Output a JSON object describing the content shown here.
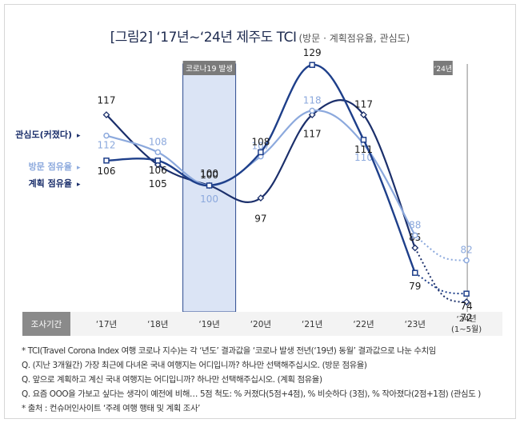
{
  "title": "[그림2] ‘17년~‘24년 제주도 TCI",
  "subtitle": "(방문 · 계획점유율, 관심도)",
  "annotations": {
    "covid_tag": "코로나19 발생",
    "y24_tag": "‘24년"
  },
  "table_header": "조사기간",
  "colors": {
    "interest": "#1b2f6b",
    "visit": "#8ca9dd",
    "plan": "#1e3f8a",
    "header_bg": "#8a8a8a",
    "covid_band": "#dbe4f5"
  },
  "chart_data": {
    "type": "line",
    "categories": [
      "‘17년",
      "‘18년",
      "‘19년",
      "‘20년",
      "‘21년",
      "‘22년",
      "‘23년",
      "‘24년\n(1~5월)"
    ],
    "series": [
      {
        "name": "관심도(커졌다)",
        "values": [
          117,
          105,
          100,
          97,
          117,
          117,
          85,
          72
        ],
        "labels": [
          "117",
          "105",
          "100",
          "97",
          "117",
          "117",
          "85",
          "72"
        ]
      },
      {
        "name": "방문 점유율",
        "values": [
          112,
          108,
          100,
          107,
          118,
          110,
          88,
          82
        ],
        "labels": [
          "112",
          "108",
          "100",
          "107",
          "118",
          "110",
          "88",
          "82"
        ]
      },
      {
        "name": "계획 점유율",
        "values": [
          106,
          106,
          100,
          108,
          129,
          111,
          79,
          74
        ],
        "labels": [
          "106",
          "106",
          "100",
          "108",
          "129",
          "111",
          "79",
          "74"
        ]
      }
    ],
    "dotted_last_segment": true
  },
  "footnotes": [
    "* TCI(Travel Corona Index 여행 코로나 지수)는 각 ‘년도’ 결과값을 ‘코로나 발생 전년(‘19년) 동월’ 결과값으로 나눈 수치임",
    "Q. (지난 3개월간) 가장 최근에 다녀온 국내 여행지는 어디입니까? 하나만 선택해주십시오. (방문 점유율)",
    "Q. 앞으로 계획하고 계신 국내 여행지는 어디입니까? 하나만 선택해주십시오. (계획 점유율)",
    "Q. 요즘 OOO을 가보고 싶다는 생각이 예전에 비해… 5점 척도: % 커졌다(5점+4점), % 비슷하다 (3점), % 작아졌다(2점+1점) (관심도 )",
    "* 출처 : 컨슈머인사이트 ‘주례 여행 행태 및 계획 조사’"
  ]
}
